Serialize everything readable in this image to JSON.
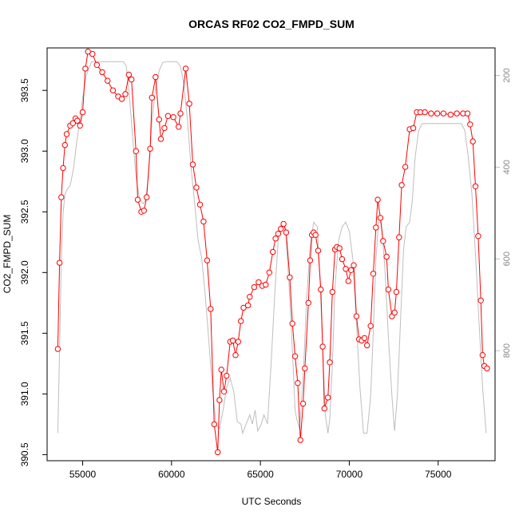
{
  "chart_data": {
    "type": "line",
    "title": "ORCAS RF02 CO2_FMPD_SUM",
    "xlabel": "UTC Seconds",
    "ylabel": "CO2_FMPD_SUM",
    "xlim": [
      53000,
      78200
    ],
    "ylim": [
      390.45,
      393.85
    ],
    "x_ticks": [
      55000,
      60000,
      65000,
      70000,
      75000
    ],
    "y_ticks": [
      390.5,
      391.0,
      391.5,
      392.0,
      392.5,
      393.0,
      393.5
    ],
    "y_tick_labels": [
      "390.5",
      "391.0",
      "391.5",
      "392.0",
      "392.5",
      "393.0",
      "393.5"
    ],
    "right_axis": {
      "ticks": [
        200,
        400,
        600,
        800
      ],
      "lim": [
        1040,
        140
      ],
      "color": "#bebebe"
    },
    "series": [
      {
        "style": "red line with open circle markers",
        "color": "#ff0000",
        "points": [
          [
            53600,
            391.37
          ],
          [
            53700,
            392.08
          ],
          [
            53800,
            392.62
          ],
          [
            53900,
            392.86
          ],
          [
            54000,
            393.05
          ],
          [
            54100,
            393.14
          ],
          [
            54300,
            393.21
          ],
          [
            54450,
            393.23
          ],
          [
            54600,
            393.27
          ],
          [
            54700,
            393.25
          ],
          [
            54850,
            393.21
          ],
          [
            55000,
            393.32
          ],
          [
            55150,
            393.68
          ],
          [
            55300,
            393.82
          ],
          [
            55550,
            393.8
          ],
          [
            55800,
            393.71
          ],
          [
            56100,
            393.65
          ],
          [
            56400,
            393.58
          ],
          [
            56700,
            393.5
          ],
          [
            57000,
            393.45
          ],
          [
            57200,
            393.43
          ],
          [
            57400,
            393.47
          ],
          [
            57600,
            393.63
          ],
          [
            57750,
            393.59
          ],
          [
            58000,
            393.0
          ],
          [
            58100,
            392.6
          ],
          [
            58300,
            392.5
          ],
          [
            58450,
            392.51
          ],
          [
            58600,
            392.62
          ],
          [
            58800,
            393.02
          ],
          [
            58900,
            393.44
          ],
          [
            59100,
            393.61
          ],
          [
            59300,
            393.26
          ],
          [
            59400,
            393.1
          ],
          [
            59600,
            393.19
          ],
          [
            59800,
            393.29
          ],
          [
            60100,
            393.28
          ],
          [
            60400,
            393.2
          ],
          [
            60500,
            393.31
          ],
          [
            60800,
            393.68
          ],
          [
            61000,
            393.39
          ],
          [
            61200,
            392.89
          ],
          [
            61400,
            392.7
          ],
          [
            61600,
            392.56
          ],
          [
            61800,
            392.42
          ],
          [
            62000,
            392.1
          ],
          [
            62200,
            391.7
          ],
          [
            62400,
            390.75
          ],
          [
            62600,
            390.52
          ],
          [
            62700,
            390.95
          ],
          [
            62800,
            391.2
          ],
          [
            62950,
            391.02
          ],
          [
            63100,
            391.15
          ],
          [
            63300,
            391.43
          ],
          [
            63450,
            391.44
          ],
          [
            63600,
            391.32
          ],
          [
            63750,
            391.43
          ],
          [
            63900,
            391.6
          ],
          [
            64050,
            391.71
          ],
          [
            64300,
            391.73
          ],
          [
            64400,
            391.8
          ],
          [
            64650,
            391.88
          ],
          [
            64900,
            391.92
          ],
          [
            65100,
            391.89
          ],
          [
            65300,
            391.9
          ],
          [
            65500,
            392.0
          ],
          [
            65700,
            392.17
          ],
          [
            65850,
            392.28
          ],
          [
            66000,
            392.32
          ],
          [
            66150,
            392.36
          ],
          [
            66300,
            392.4
          ],
          [
            66450,
            392.33
          ],
          [
            66650,
            391.96
          ],
          [
            66800,
            391.58
          ],
          [
            66950,
            391.31
          ],
          [
            67100,
            391.09
          ],
          [
            67250,
            390.62
          ],
          [
            67400,
            390.92
          ],
          [
            67500,
            391.21
          ],
          [
            67700,
            391.75
          ],
          [
            67800,
            392.1
          ],
          [
            67900,
            392.31
          ],
          [
            68000,
            392.33
          ],
          [
            68100,
            392.31
          ],
          [
            68250,
            392.18
          ],
          [
            68400,
            391.86
          ],
          [
            68500,
            391.39
          ],
          [
            68600,
            390.88
          ],
          [
            68800,
            390.97
          ],
          [
            68900,
            391.26
          ],
          [
            69050,
            391.84
          ],
          [
            69200,
            392.19
          ],
          [
            69300,
            392.21
          ],
          [
            69450,
            392.2
          ],
          [
            69600,
            392.11
          ],
          [
            69800,
            392.03
          ],
          [
            69950,
            391.93
          ],
          [
            70100,
            392.02
          ],
          [
            70250,
            392.06
          ],
          [
            70400,
            391.64
          ],
          [
            70550,
            391.45
          ],
          [
            70700,
            391.44
          ],
          [
            70850,
            391.46
          ],
          [
            71000,
            391.4
          ],
          [
            71200,
            391.56
          ],
          [
            71350,
            391.99
          ],
          [
            71500,
            392.37
          ],
          [
            71600,
            392.6
          ],
          [
            71750,
            392.45
          ],
          [
            71900,
            392.26
          ],
          [
            72100,
            392.13
          ],
          [
            72200,
            391.86
          ],
          [
            72400,
            391.64
          ],
          [
            72550,
            391.67
          ],
          [
            72650,
            391.84
          ],
          [
            72800,
            392.29
          ],
          [
            72950,
            392.72
          ],
          [
            73150,
            392.87
          ],
          [
            73400,
            393.18
          ],
          [
            73600,
            393.19
          ],
          [
            73800,
            393.32
          ],
          [
            74000,
            393.32
          ],
          [
            74250,
            393.32
          ],
          [
            74600,
            393.31
          ],
          [
            74950,
            393.31
          ],
          [
            75300,
            393.31
          ],
          [
            75700,
            393.3
          ],
          [
            76050,
            393.31
          ],
          [
            76400,
            393.31
          ],
          [
            76650,
            393.31
          ],
          [
            76800,
            393.22
          ],
          [
            76950,
            393.08
          ],
          [
            77100,
            392.71
          ],
          [
            77250,
            392.3
          ],
          [
            77400,
            391.77
          ],
          [
            77500,
            391.32
          ],
          [
            77600,
            391.23
          ],
          [
            77750,
            391.21
          ]
        ]
      },
      {
        "style": "grey line (right axis)",
        "color": "#bebebe",
        "points": [
          [
            53600,
            980
          ],
          [
            53700,
            800
          ],
          [
            53800,
            600
          ],
          [
            53900,
            500
          ],
          [
            54000,
            460
          ],
          [
            54100,
            450
          ],
          [
            54300,
            440
          ],
          [
            54500,
            400
          ],
          [
            54650,
            350
          ],
          [
            54800,
            310
          ],
          [
            55000,
            250
          ],
          [
            55200,
            200
          ],
          [
            55500,
            170
          ],
          [
            56000,
            170
          ],
          [
            56500,
            170
          ],
          [
            57000,
            170
          ],
          [
            57300,
            170
          ],
          [
            57450,
            180
          ],
          [
            57600,
            230
          ],
          [
            57800,
            330
          ],
          [
            58000,
            420
          ],
          [
            58200,
            470
          ],
          [
            58400,
            480
          ],
          [
            58550,
            470
          ],
          [
            58700,
            420
          ],
          [
            58900,
            300
          ],
          [
            59100,
            230
          ],
          [
            59300,
            190
          ],
          [
            59500,
            172
          ],
          [
            59700,
            170
          ],
          [
            60000,
            170
          ],
          [
            60300,
            170
          ],
          [
            60500,
            180
          ],
          [
            60700,
            220
          ],
          [
            60900,
            300
          ],
          [
            61100,
            400
          ],
          [
            61300,
            480
          ],
          [
            61500,
            560
          ],
          [
            61700,
            600
          ],
          [
            61900,
            680
          ],
          [
            62100,
            780
          ],
          [
            62300,
            880
          ],
          [
            62500,
            960
          ],
          [
            62700,
            970
          ],
          [
            62900,
            930
          ],
          [
            63100,
            880
          ],
          [
            63300,
            860
          ],
          [
            63500,
            890
          ],
          [
            63700,
            955
          ],
          [
            63900,
            960
          ],
          [
            64000,
            980
          ],
          [
            64200,
            960
          ],
          [
            64400,
            940
          ],
          [
            64550,
            960
          ],
          [
            64700,
            930
          ],
          [
            64850,
            975
          ],
          [
            65050,
            960
          ],
          [
            65200,
            940
          ],
          [
            65400,
            960
          ],
          [
            65600,
            830
          ],
          [
            65800,
            680
          ],
          [
            66000,
            560
          ],
          [
            66200,
            520
          ],
          [
            66400,
            530
          ],
          [
            66600,
            650
          ],
          [
            66800,
            800
          ],
          [
            66950,
            930
          ],
          [
            67050,
            950
          ],
          [
            67200,
            970
          ],
          [
            67400,
            860
          ],
          [
            67600,
            690
          ],
          [
            67800,
            570
          ],
          [
            68000,
            520
          ],
          [
            68200,
            530
          ],
          [
            68350,
            640
          ],
          [
            68500,
            790
          ],
          [
            68650,
            940
          ],
          [
            68800,
            980
          ],
          [
            68900,
            950
          ],
          [
            69050,
            830
          ],
          [
            69200,
            660
          ],
          [
            69400,
            560
          ],
          [
            69600,
            530
          ],
          [
            69800,
            520
          ],
          [
            70000,
            540
          ],
          [
            70200,
            600
          ],
          [
            70400,
            740
          ],
          [
            70600,
            880
          ],
          [
            70800,
            980
          ],
          [
            71000,
            980
          ],
          [
            71200,
            900
          ],
          [
            71350,
            760
          ],
          [
            71500,
            600
          ],
          [
            71650,
            520
          ],
          [
            71800,
            520
          ],
          [
            72000,
            620
          ],
          [
            72200,
            770
          ],
          [
            72400,
            900
          ],
          [
            72550,
            975
          ],
          [
            72700,
            900
          ],
          [
            72900,
            720
          ],
          [
            73050,
            580
          ],
          [
            73200,
            530
          ],
          [
            73400,
            520
          ],
          [
            73550,
            470
          ],
          [
            73700,
            380
          ],
          [
            73900,
            320
          ],
          [
            74100,
            305
          ],
          [
            74400,
            305
          ],
          [
            74800,
            305
          ],
          [
            75200,
            305
          ],
          [
            75600,
            305
          ],
          [
            76000,
            305
          ],
          [
            76300,
            305
          ],
          [
            76500,
            320
          ],
          [
            76700,
            380
          ],
          [
            76900,
            460
          ],
          [
            77100,
            590
          ],
          [
            77300,
            740
          ],
          [
            77500,
            880
          ],
          [
            77700,
            980
          ]
        ]
      }
    ]
  }
}
